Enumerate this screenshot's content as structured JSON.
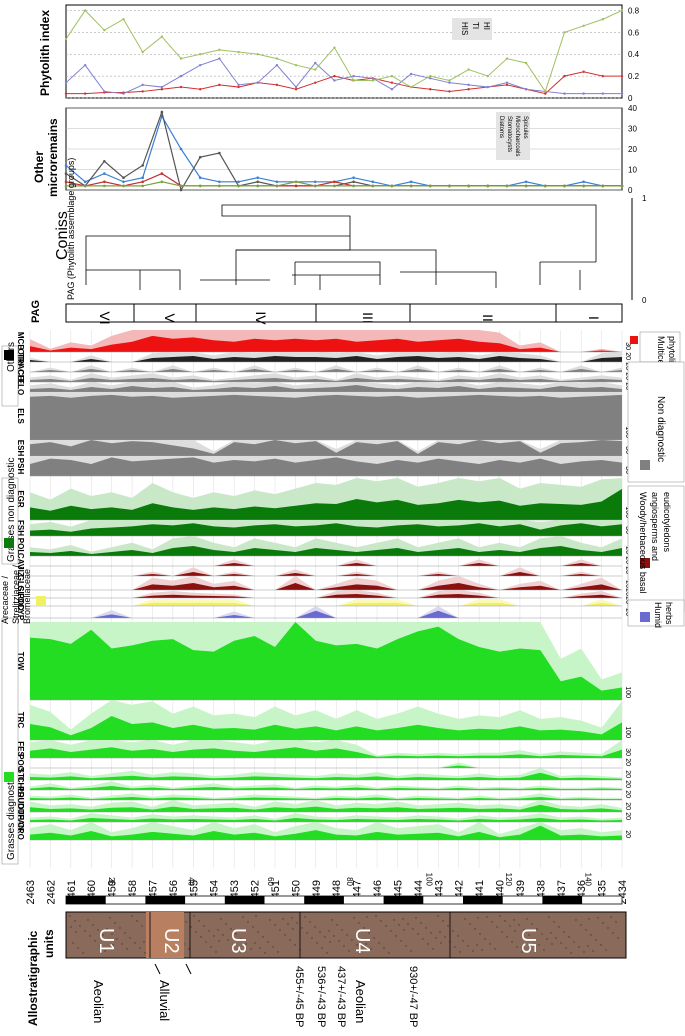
{
  "panels": {
    "phytolith_index": {
      "title": "Phytolith index",
      "legend": [
        "HIS",
        "TI",
        "HI"
      ],
      "ticks": [
        "0",
        "0.2",
        "0.4",
        "0.6",
        "0.8"
      ]
    },
    "other_micro": {
      "title": "Other micro­remains",
      "title_lines": [
        "Other",
        "microremains"
      ],
      "legend": [
        "Diatoms",
        "Stomatocysts",
        "Microcharcoals",
        "Spicules"
      ],
      "ticks": [
        "0",
        "10",
        "20",
        "30",
        "40"
      ]
    },
    "coniss": {
      "title": "Coniss",
      "ylabel": "PAG (Phytolith assemblage groups)",
      "ticks": [
        "0",
        "1"
      ]
    },
    "pag": {
      "label": "PAG",
      "groups": [
        "VI",
        "V",
        "IV",
        "III",
        "II",
        "I"
      ]
    }
  },
  "depths": [
    "2463",
    "2462",
    "2461",
    "2460",
    "2459",
    "2458",
    "2457",
    "2456",
    "2455",
    "2454",
    "2453",
    "2452",
    "2451",
    "2450",
    "2449",
    "2448",
    "2447",
    "2446",
    "2445",
    "2444",
    "2443",
    "2442",
    "2441",
    "2440",
    "2439",
    "2438",
    "2437",
    "2436",
    "2435",
    "2434"
  ],
  "scale_ticks": [
    "20",
    "40",
    "60",
    "80",
    "100",
    "120",
    "140"
  ],
  "units": {
    "title": "Allostratigraphic units",
    "labels": [
      "U1",
      "U2",
      "U3",
      "U4",
      "U5"
    ],
    "environments": [
      "Aeolian",
      "Alluvial",
      "Aeolian"
    ],
    "dates": [
      "455+/-45 BP",
      "536+/-43 BP",
      "437+/-43 BP",
      "930+/-47 BP"
    ]
  },
  "groups": {
    "grasses_diagnostic": "Grasses diagnostic",
    "arecaceae": [
      "Arecaceae /",
      "Strelitziaceae /",
      "Bromeliaceae"
    ],
    "humid_herbs": [
      "Humid",
      "herbs"
    ],
    "woody": [
      "Woody/herbaceous basal",
      "angiosperms and",
      "eudicotyledons"
    ],
    "grasses_non_diagnostic": "Grasses non diagnostic",
    "non_diagnostic": "Non diagnostic",
    "multicellular": [
      "Multicellular",
      "phytoliths"
    ],
    "others": "Others"
  },
  "colors": {
    "grass": "#22dd22",
    "grass_light": "#c8f5c8",
    "dark_green": "#0a7a0a",
    "light_green": "#c8e8c8",
    "grey": "#808080",
    "light_grey": "#dddddd",
    "blue": "#6a6ad0",
    "yellow": "#f0f060",
    "brown": "#8b1010",
    "pink": "#e8b0b0",
    "red": "#ee1111",
    "sediment": "#8a6a5a",
    "his": "#d03030",
    "ti": "#8080d0",
    "hi": "#a0c060"
  },
  "chart_data": {
    "type": "area",
    "x": [
      2463,
      2462,
      2461,
      2460,
      2459,
      2458,
      2457,
      2456,
      2455,
      2454,
      2453,
      2452,
      2451,
      2450,
      2449,
      2448,
      2447,
      2446,
      2445,
      2444,
      2443,
      2442,
      2441,
      2440,
      2439,
      2438,
      2437,
      2436,
      2435,
      2434
    ],
    "ylabel": "",
    "series": [
      {
        "name": "CRO",
        "max": "20",
        "values": [
          6,
          8,
          5,
          10,
          4,
          6,
          9,
          7,
          5,
          10,
          6,
          8,
          4,
          7,
          11,
          6,
          5,
          9,
          6,
          7,
          8,
          4,
          9,
          3,
          6,
          16,
          5,
          6,
          4,
          5
        ]
      },
      {
        "name": "DUPAN",
        "max": "20",
        "values": [
          4,
          5,
          3,
          8,
          6,
          4,
          7,
          5,
          6,
          5,
          4,
          6,
          3,
          8,
          5,
          4,
          6,
          5,
          4,
          6,
          5,
          3,
          6,
          4,
          5,
          8,
          4,
          5,
          3,
          4
        ]
      },
      {
        "name": "DUOTH",
        "max": "20",
        "values": [
          8,
          5,
          6,
          4,
          7,
          8,
          4,
          9,
          5,
          6,
          7,
          4,
          8,
          6,
          9,
          5,
          7,
          6,
          8,
          5,
          6,
          7,
          5,
          6,
          4,
          12,
          5,
          4,
          6,
          3
        ]
      },
      {
        "name": "PRU",
        "max": "20",
        "values": [
          4,
          3,
          5,
          2,
          4,
          6,
          3,
          5,
          4,
          2,
          3,
          5,
          4,
          3,
          2,
          4,
          3,
          5,
          2,
          4,
          3,
          2,
          4,
          2,
          3,
          6,
          2,
          3,
          2,
          2
        ]
      },
      {
        "name": "CHL",
        "max": "20",
        "values": [
          3,
          6,
          2,
          4,
          8,
          3,
          5,
          2,
          4,
          6,
          3,
          4,
          5,
          2,
          4,
          3,
          5,
          2,
          4,
          3,
          2,
          4,
          2,
          3,
          2,
          4,
          2,
          2,
          3,
          2
        ]
      },
      {
        "name": "STI",
        "max": "20",
        "values": [
          5,
          4,
          6,
          3,
          5,
          7,
          4,
          6,
          5,
          3,
          4,
          6,
          5,
          4,
          3,
          5,
          4,
          6,
          3,
          5,
          4,
          3,
          5,
          3,
          4,
          12,
          3,
          4,
          3,
          2
        ]
      },
      {
        "name": "POO",
        "max": "20",
        "values": [
          0,
          0,
          0,
          0,
          0,
          0,
          0,
          0,
          0,
          0,
          0,
          0,
          0,
          0,
          0,
          0,
          0,
          0,
          0,
          0,
          0,
          5,
          0,
          0,
          0,
          0,
          0,
          0,
          0,
          0
        ]
      },
      {
        "name": "FES",
        "max": "30",
        "values": [
          12,
          16,
          10,
          14,
          18,
          12,
          15,
          10,
          14,
          16,
          12,
          10,
          14,
          18,
          12,
          16,
          10,
          2,
          4,
          3,
          4,
          3,
          4,
          4,
          6,
          3,
          5,
          4,
          3,
          14
        ]
      },
      {
        "name": "TRC",
        "max": "100",
        "values": [
          40,
          32,
          12,
          30,
          60,
          40,
          44,
          30,
          38,
          28,
          30,
          26,
          38,
          28,
          34,
          24,
          34,
          24,
          30,
          38,
          30,
          24,
          28,
          26,
          34,
          24,
          26,
          22,
          14,
          44
        ]
      },
      {
        "name": "TOW",
        "max": "100",
        "values": [
          80,
          78,
          72,
          90,
          66,
          70,
          76,
          78,
          64,
          62,
          76,
          82,
          68,
          100,
          76,
          70,
          72,
          66,
          78,
          88,
          94,
          78,
          68,
          62,
          66,
          64,
          24,
          30,
          12,
          16
        ]
      },
      {
        "name": "CYP",
        "max": "20",
        "values": [
          0,
          0,
          0,
          0,
          6,
          0,
          0,
          0,
          0,
          0,
          5,
          0,
          0,
          0,
          12,
          0,
          0,
          0,
          0,
          0,
          12,
          0,
          0,
          0,
          0,
          0,
          0,
          0,
          0,
          0
        ]
      },
      {
        "name": "POD",
        "max": "20",
        "values": [
          0,
          0,
          0,
          0,
          0,
          0,
          8,
          8,
          8,
          8,
          8,
          0,
          0,
          0,
          0,
          0,
          8,
          8,
          8,
          0,
          0,
          0,
          8,
          8,
          0,
          0,
          0,
          0,
          8,
          0
        ]
      },
      {
        "name": "GLO",
        "max": "20",
        "values": [
          0,
          0,
          0,
          0,
          0,
          0,
          6,
          8,
          6,
          5,
          4,
          0,
          0,
          0,
          0,
          8,
          10,
          6,
          0,
          0,
          8,
          10,
          6,
          0,
          0,
          0,
          0,
          5,
          8,
          0
        ]
      },
      {
        "name": "GLS",
        "max": "20",
        "values": [
          0,
          0,
          0,
          0,
          0,
          0,
          8,
          6,
          10,
          4,
          6,
          0,
          0,
          10,
          0,
          4,
          8,
          6,
          0,
          0,
          6,
          10,
          4,
          0,
          4,
          6,
          0,
          4,
          8,
          0
        ]
      },
      {
        "name": "JIZ",
        "max": "20",
        "values": [
          0,
          0,
          0,
          0,
          0,
          0,
          4,
          0,
          8,
          0,
          4,
          0,
          0,
          6,
          0,
          0,
          4,
          0,
          0,
          0,
          4,
          0,
          0,
          0,
          8,
          0,
          0,
          4,
          0,
          0
        ]
      },
      {
        "name": "CAV",
        "max": "20",
        "values": [
          0,
          0,
          0,
          0,
          0,
          0,
          0,
          0,
          0,
          0,
          6,
          0,
          0,
          0,
          0,
          0,
          6,
          0,
          0,
          0,
          0,
          0,
          6,
          0,
          0,
          0,
          0,
          6,
          0,
          0
        ]
      },
      {
        "name": "POL",
        "max": "20",
        "values": [
          4,
          3,
          5,
          2,
          4,
          6,
          3,
          8,
          10,
          6,
          4,
          8,
          6,
          4,
          8,
          6,
          4,
          6,
          8,
          4,
          6,
          8,
          4,
          6,
          4,
          8,
          10,
          6,
          4,
          8
        ]
      },
      {
        "name": "FSH",
        "max": "30",
        "values": [
          10,
          12,
          8,
          14,
          16,
          18,
          22,
          20,
          24,
          18,
          16,
          20,
          22,
          18,
          20,
          24,
          18,
          16,
          20,
          22,
          18,
          20,
          24,
          18,
          22,
          12,
          20,
          24,
          18,
          22
        ]
      },
      {
        "name": "EGR",
        "max": "100",
        "values": [
          30,
          22,
          34,
          26,
          30,
          24,
          40,
          30,
          24,
          30,
          26,
          32,
          28,
          34,
          40,
          38,
          50,
          42,
          48,
          36,
          40,
          48,
          42,
          46,
          34,
          40,
          38,
          36,
          44,
          74
        ]
      },
      {
        "name": "PSH",
        "max": "30",
        "values": [
          18,
          26,
          24,
          18,
          28,
          22,
          24,
          26,
          28,
          20,
          24,
          22,
          26,
          20,
          24,
          28,
          22,
          18,
          24,
          20,
          26,
          22,
          18,
          24,
          20,
          26,
          18,
          22,
          24,
          20
        ]
      },
      {
        "name": "ESH",
        "max": "30",
        "values": [
          22,
          26,
          18,
          30,
          24,
          28,
          26,
          20,
          14,
          4,
          26,
          22,
          30,
          24,
          28,
          6,
          26,
          22,
          28,
          4,
          26,
          22,
          30,
          24,
          28,
          6,
          24,
          26,
          30,
          28
        ]
      },
      {
        "name": "ELS",
        "max": "100",
        "values": [
          90,
          92,
          88,
          92,
          94,
          90,
          92,
          88,
          90,
          92,
          94,
          92,
          90,
          88,
          92,
          94,
          92,
          90,
          92,
          88,
          90,
          92,
          94,
          92,
          90,
          92,
          88,
          90,
          92,
          94
        ]
      },
      {
        "name": "ELO",
        "max": "20",
        "values": [
          6,
          8,
          4,
          10,
          6,
          12,
          8,
          10,
          4,
          6,
          10,
          8,
          12,
          6,
          8,
          10,
          14,
          8,
          6,
          10,
          8,
          12,
          6,
          10,
          8,
          6,
          12,
          8,
          10,
          6
        ]
      },
      {
        "name": "CEL",
        "max": "20",
        "values": [
          4,
          6,
          2,
          8,
          4,
          6,
          8,
          4,
          6,
          2,
          4,
          6,
          8,
          4,
          6,
          2,
          8,
          4,
          6,
          4,
          2,
          6,
          4,
          8,
          4,
          6,
          2,
          4,
          6,
          4
        ]
      },
      {
        "name": "TRACH",
        "max": "20",
        "values": [
          0,
          4,
          0,
          6,
          0,
          4,
          0,
          6,
          0,
          4,
          0,
          6,
          0,
          4,
          0,
          6,
          0,
          4,
          0,
          6,
          0,
          4,
          0,
          6,
          0,
          4,
          0,
          6,
          0,
          4
        ]
      },
      {
        "name": "OTH",
        "max": "20",
        "values": [
          4,
          0,
          0,
          6,
          0,
          0,
          8,
          10,
          12,
          6,
          10,
          8,
          12,
          10,
          10,
          8,
          12,
          6,
          10,
          12,
          8,
          10,
          6,
          12,
          8,
          6,
          0,
          0,
          8,
          10
        ]
      },
      {
        "name": "MCB",
        "max": "30",
        "values": [
          8,
          2,
          6,
          4,
          10,
          14,
          22,
          18,
          20,
          16,
          14,
          18,
          16,
          18,
          16,
          18,
          14,
          16,
          18,
          14,
          16,
          18,
          14,
          12,
          4,
          6,
          0,
          0,
          2,
          0
        ]
      }
    ],
    "phytolith_index": {
      "ylim": [
        0,
        0.85
      ],
      "HIS": [
        0.04,
        0.04,
        0.05,
        0.05,
        0.06,
        0.08,
        0.1,
        0.08,
        0.12,
        0.1,
        0.14,
        0.12,
        0.08,
        0.14,
        0.2,
        0.16,
        0.18,
        0.14,
        0.1,
        0.08,
        0.06,
        0.08,
        0.1,
        0.12,
        0.08,
        0.04,
        0.2,
        0.24,
        0.2,
        0.2
      ],
      "TI": [
        0.14,
        0.3,
        0.06,
        0.04,
        0.12,
        0.1,
        0.2,
        0.3,
        0.36,
        0.12,
        0.14,
        0.3,
        0.1,
        0.32,
        0.16,
        0.2,
        0.18,
        0.08,
        0.22,
        0.18,
        0.14,
        0.12,
        0.1,
        0.14,
        0.08,
        0.06,
        0.04,
        0.04,
        0.04,
        0.04
      ],
      "HI": [
        0.54,
        0.8,
        0.62,
        0.72,
        0.42,
        0.56,
        0.36,
        0.4,
        0.44,
        0.42,
        0.4,
        0.36,
        0.3,
        0.26,
        0.46,
        0.16,
        0.16,
        0.2,
        0.1,
        0.2,
        0.16,
        0.26,
        0.2,
        0.36,
        0.32,
        0.06,
        0.6,
        0.66,
        0.72,
        0.8
      ]
    },
    "other_microremains": {
      "ylim": [
        0,
        40
      ],
      "Diatoms": [
        12,
        4,
        8,
        4,
        6,
        36,
        20,
        6,
        4,
        4,
        6,
        4,
        4,
        4,
        4,
        6,
        4,
        2,
        4,
        2,
        2,
        2,
        2,
        2,
        4,
        2,
        2,
        4,
        2,
        2
      ],
      "Stomatocysts": [
        8,
        2,
        14,
        6,
        12,
        38,
        0,
        16,
        18,
        2,
        4,
        2,
        2,
        2,
        2,
        4,
        2,
        2,
        2,
        2,
        2,
        2,
        2,
        2,
        2,
        2,
        2,
        2,
        2,
        2
      ],
      "Microcharcoals": [
        4,
        2,
        4,
        2,
        4,
        8,
        2,
        2,
        2,
        2,
        2,
        2,
        2,
        2,
        4,
        2,
        2,
        2,
        2,
        2,
        2,
        2,
        2,
        2,
        2,
        2,
        2,
        2,
        2,
        2
      ],
      "Spicules": [
        2,
        2,
        2,
        2,
        2,
        4,
        2,
        2,
        2,
        2,
        2,
        2,
        4,
        2,
        2,
        2,
        2,
        2,
        2,
        2,
        2,
        2,
        2,
        2,
        2,
        2,
        2,
        2,
        2,
        2
      ]
    }
  }
}
